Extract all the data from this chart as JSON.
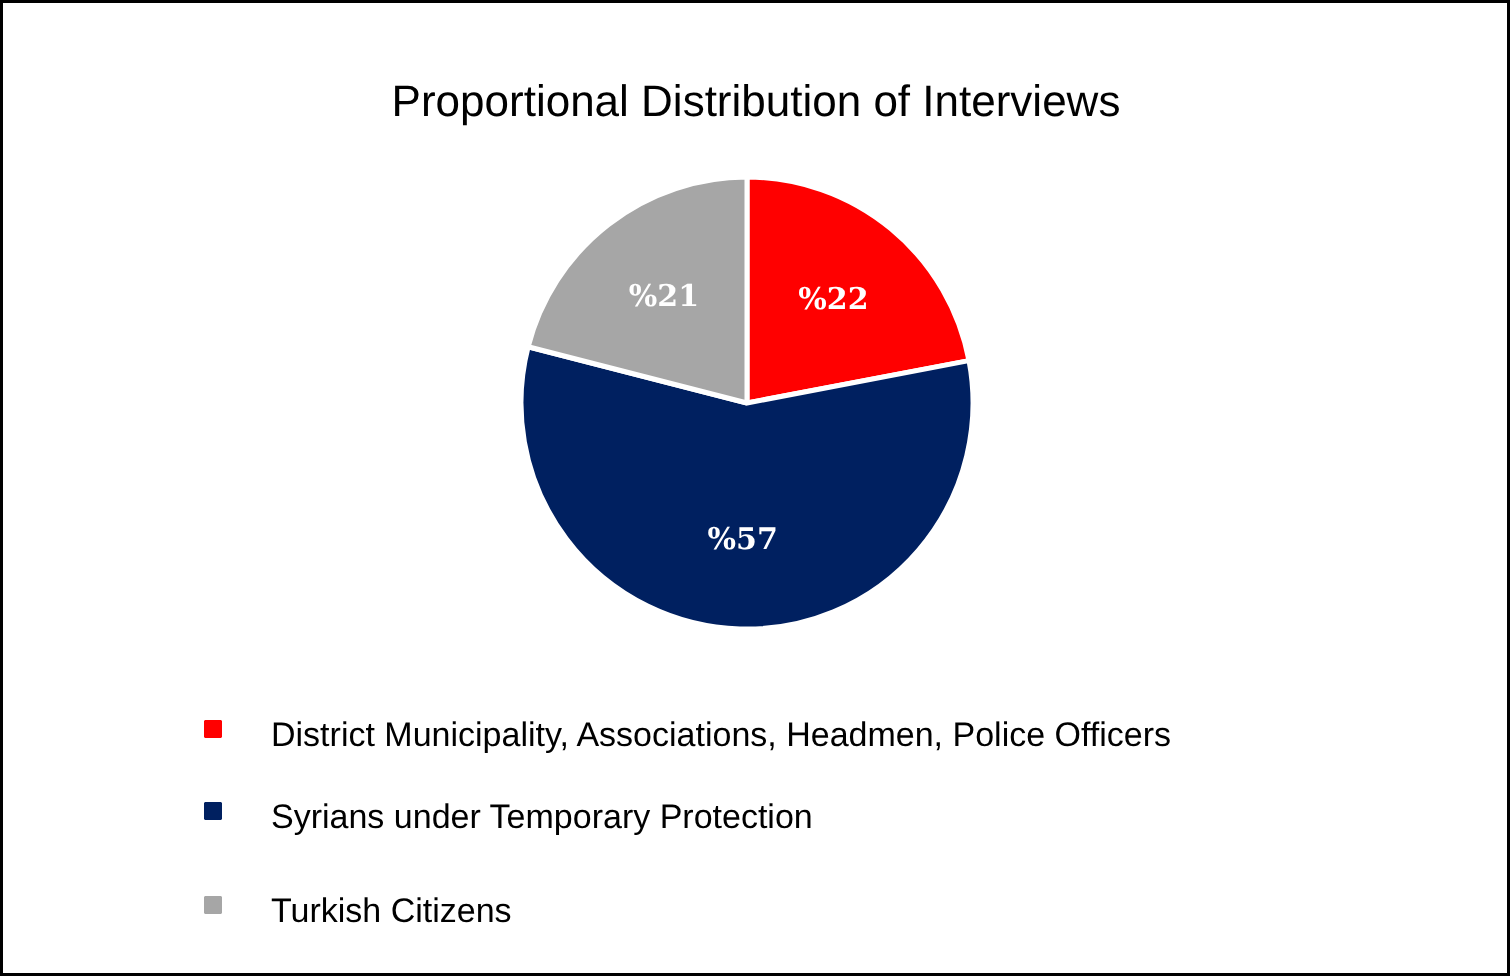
{
  "chart_data": {
    "type": "pie",
    "title": "Proportional Distribution of Interviews",
    "categories": [
      "District Municipality, Associations, Headmen, Police Officers",
      "Syrians under Temporary Protection",
      "Turkish Citizens"
    ],
    "values": [
      22,
      57,
      21
    ],
    "colors": [
      "#ff0000",
      "#002060",
      "#a6a6a6"
    ],
    "value_labels": [
      "%22",
      "%57",
      "%21"
    ],
    "legend": "bottom"
  }
}
